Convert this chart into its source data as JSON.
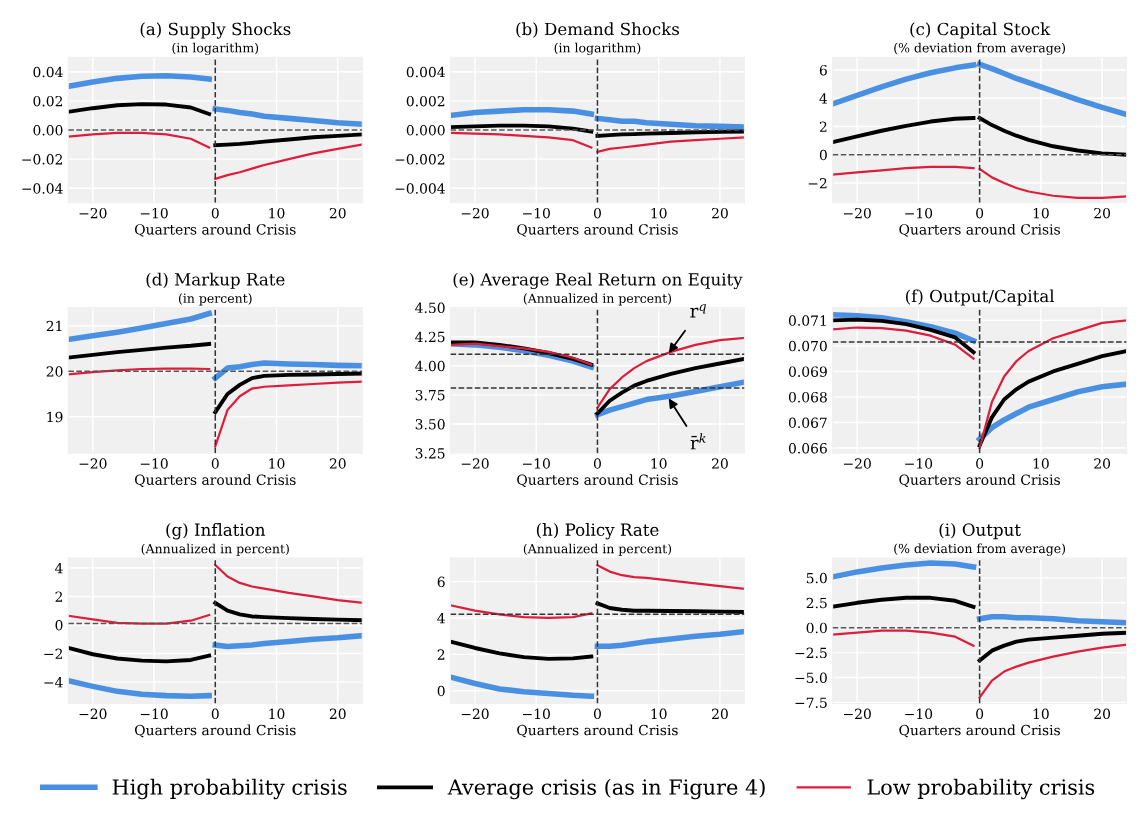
{
  "chart_data": [
    {
      "type": "line",
      "title": "(a) Supply Shocks",
      "subtitle": "(in logarithm)",
      "xlabel": "Quarters around Crisis",
      "x": [
        -24,
        -20,
        -16,
        -12,
        -8,
        -4,
        -1,
        -0.5,
        0,
        2,
        4,
        6,
        8,
        12,
        16,
        20,
        24
      ],
      "xlim": [
        -24,
        24
      ],
      "xticks": [
        -20,
        -10,
        0,
        10,
        20
      ],
      "ylim": [
        -0.05,
        0.05
      ],
      "yticks": [
        {
          "value": -0.04,
          "label": "−0.04"
        },
        {
          "value": -0.02,
          "label": "−0.02"
        },
        {
          "value": 0,
          "label": "0.00"
        },
        0.02,
        0.04
      ],
      "grid": true,
      "ref_lines": [
        {
          "axis": "x",
          "value": 0,
          "color": "#333333",
          "line_style": "dashed"
        },
        {
          "axis": "y",
          "value": 0,
          "color": "#555555",
          "line_style": "dashed"
        }
      ],
      "series": [
        {
          "color": "#4a90e2",
          "values": [
            0.03,
            0.033,
            0.0355,
            0.037,
            0.0373,
            0.0365,
            0.035,
            null,
            0.0145,
            0.0135,
            0.012,
            0.011,
            0.0095,
            0.008,
            0.0065,
            0.005,
            0.004
          ]
        },
        {
          "color": "#000000",
          "values": [
            0.0125,
            0.015,
            0.017,
            0.0178,
            0.0175,
            0.0155,
            0.011,
            null,
            -0.0105,
            -0.01,
            -0.0095,
            -0.0088,
            -0.008,
            -0.0065,
            -0.005,
            -0.004,
            -0.003
          ]
        },
        {
          "color": "#dc1e3c",
          "values": [
            -0.0045,
            -0.003,
            -0.002,
            -0.002,
            -0.003,
            -0.006,
            -0.012,
            null,
            -0.0335,
            -0.031,
            -0.029,
            -0.0265,
            -0.024,
            -0.02,
            -0.016,
            -0.013,
            -0.01
          ]
        }
      ]
    },
    {
      "type": "line",
      "title": "(b) Demand Shocks",
      "subtitle": "(in logarithm)",
      "xlabel": "Quarters around Crisis",
      "x": [
        -24,
        -20,
        -16,
        -12,
        -8,
        -4,
        -1,
        -0.5,
        0,
        2,
        4,
        6,
        8,
        12,
        16,
        20,
        24
      ],
      "xlim": [
        -24,
        24
      ],
      "xticks": [
        -20,
        -10,
        0,
        10,
        20
      ],
      "ylim": [
        -0.005,
        0.005
      ],
      "yticks": [
        {
          "value": -0.004,
          "label": "−0.004"
        },
        {
          "value": -0.002,
          "label": "−0.002"
        },
        {
          "value": 0,
          "label": "0.000"
        },
        0.002,
        0.004
      ],
      "grid": true,
      "ref_lines": [
        {
          "axis": "x",
          "value": 0,
          "color": "#333333",
          "line_style": "dashed"
        },
        {
          "axis": "y",
          "value": 0,
          "color": "#555555",
          "line_style": "dashed"
        }
      ],
      "series": [
        {
          "color": "#4a90e2",
          "values": [
            0.001,
            0.0012,
            0.0013,
            0.0014,
            0.0014,
            0.0013,
            0.0011,
            null,
            0.0008,
            0.0007,
            0.0006,
            0.0006,
            0.0005,
            0.0004,
            0.0003,
            0.00025,
            0.0002
          ]
        },
        {
          "color": "#000000",
          "values": [
            0.0002,
            0.00025,
            0.0003,
            0.0003,
            0.00025,
            0.0001,
            -0.0001,
            null,
            -0.0004,
            -0.00035,
            -0.0003,
            -0.00028,
            -0.00025,
            -0.0002,
            -0.00015,
            -0.00012,
            -0.0001
          ]
        },
        {
          "color": "#dc1e3c",
          "values": [
            -0.0002,
            -0.00025,
            -0.0003,
            -0.0004,
            -0.0005,
            -0.0007,
            -0.0012,
            null,
            -0.0015,
            -0.0013,
            -0.0012,
            -0.0011,
            -0.001,
            -0.0008,
            -0.0007,
            -0.0006,
            -0.0005
          ]
        }
      ]
    },
    {
      "type": "line",
      "title": "(c) Capital Stock",
      "subtitle": "(% deviation from average)",
      "xlabel": "Quarters around Crisis",
      "x": [
        -24,
        -20,
        -16,
        -12,
        -8,
        -4,
        -1,
        -0.5,
        0,
        2,
        4,
        6,
        8,
        12,
        16,
        20,
        24
      ],
      "xlim": [
        -24,
        24
      ],
      "xticks": [
        -20,
        -10,
        0,
        10,
        20
      ],
      "ylim": [
        -3.4,
        6.9
      ],
      "yticks": [
        {
          "value": -2,
          "label": "−2"
        },
        0,
        2,
        4,
        6
      ],
      "grid": true,
      "ref_lines": [
        {
          "axis": "x",
          "value": 0,
          "color": "#333333",
          "line_style": "dashed"
        },
        {
          "axis": "y",
          "value": 0,
          "color": "#555555",
          "line_style": "dashed"
        }
      ],
      "series": [
        {
          "color": "#4a90e2",
          "values": [
            3.6,
            4.2,
            4.8,
            5.35,
            5.8,
            6.15,
            6.35,
            null,
            6.4,
            6.1,
            5.75,
            5.4,
            5.1,
            4.5,
            3.9,
            3.35,
            2.85
          ]
        },
        {
          "color": "#000000",
          "values": [
            0.9,
            1.3,
            1.7,
            2.05,
            2.35,
            2.55,
            2.6,
            null,
            2.6,
            2.1,
            1.7,
            1.35,
            1.05,
            0.6,
            0.3,
            0.1,
            0.0
          ]
        },
        {
          "color": "#dc1e3c",
          "values": [
            -1.4,
            -1.25,
            -1.1,
            -0.95,
            -0.85,
            -0.85,
            -0.95,
            null,
            -1.0,
            -1.6,
            -2.0,
            -2.35,
            -2.6,
            -2.9,
            -3.05,
            -3.05,
            -2.95
          ]
        }
      ]
    },
    {
      "type": "line",
      "title": "(d) Markup Rate",
      "subtitle": "(in percent)",
      "xlabel": "Quarters around Crisis",
      "x": [
        -24,
        -20,
        -16,
        -12,
        -8,
        -4,
        -1,
        -0.5,
        0,
        2,
        4,
        6,
        8,
        12,
        16,
        20,
        24
      ],
      "xlim": [
        -24,
        24
      ],
      "xticks": [
        -20,
        -10,
        0,
        10,
        20
      ],
      "ylim": [
        18.2,
        21.4
      ],
      "yticks": [
        19,
        20,
        21
      ],
      "grid": true,
      "ref_lines": [
        {
          "axis": "x",
          "value": 0,
          "color": "#333333",
          "line_style": "dashed"
        },
        {
          "axis": "y",
          "value": 20,
          "color": "#555555",
          "line_style": "dashed"
        }
      ],
      "series": [
        {
          "color": "#4a90e2",
          "values": [
            20.7,
            20.78,
            20.86,
            20.95,
            21.05,
            21.15,
            21.27,
            null,
            19.85,
            20.07,
            20.1,
            20.15,
            20.18,
            20.16,
            20.15,
            20.13,
            20.12
          ]
        },
        {
          "color": "#000000",
          "values": [
            20.3,
            20.36,
            20.42,
            20.47,
            20.52,
            20.56,
            20.6,
            null,
            19.1,
            19.5,
            19.7,
            19.85,
            19.9,
            19.92,
            19.93,
            19.94,
            19.95
          ]
        },
        {
          "color": "#dc1e3c",
          "values": [
            19.93,
            19.98,
            20.02,
            20.05,
            20.06,
            20.06,
            20.05,
            null,
            18.35,
            19.15,
            19.45,
            19.62,
            19.66,
            19.69,
            19.72,
            19.75,
            19.77
          ]
        }
      ]
    },
    {
      "type": "line",
      "title": "(e) Average Real Return on Equity",
      "subtitle": "(Annualized in percent)",
      "xlabel": "Quarters around Crisis",
      "x": [
        -24,
        -20,
        -16,
        -12,
        -8,
        -4,
        -1,
        -0.5,
        0,
        2,
        4,
        6,
        8,
        12,
        16,
        20,
        24
      ],
      "xlim": [
        -24,
        24
      ],
      "xticks": [
        -20,
        -10,
        0,
        10,
        20
      ],
      "ylim": [
        3.25,
        4.5
      ],
      "yticks": [
        3.25,
        {
          "value": 3.5,
          "label": "3.50"
        },
        3.75,
        {
          "value": 4,
          "label": "4.00"
        },
        4.25,
        {
          "value": 4.5,
          "label": "4.50"
        }
      ],
      "grid": true,
      "ref_lines": [
        {
          "axis": "x",
          "value": 0,
          "color": "#333333",
          "line_style": "dashed"
        },
        {
          "axis": "y",
          "value": 4.1,
          "color": "#333333",
          "line_style": "dashed"
        },
        {
          "axis": "y",
          "value": 3.81,
          "color": "#333333",
          "line_style": "dashed"
        }
      ],
      "annotations": [
        {
          "text": "r$^{q}$",
          "x": 11.5,
          "y": 4.1
        },
        {
          "text": "r̄$^{k}$",
          "x": 11.5,
          "y": 3.73
        }
      ],
      "series": [
        {
          "color": "#4a90e2",
          "values": [
            4.19,
            4.18,
            4.16,
            4.13,
            4.09,
            4.04,
            3.99,
            null,
            3.58,
            3.62,
            3.65,
            3.68,
            3.71,
            3.74,
            3.78,
            3.82,
            3.86
          ]
        },
        {
          "color": "#000000",
          "values": [
            4.2,
            4.2,
            4.18,
            4.15,
            4.11,
            4.06,
            4.01,
            null,
            3.59,
            3.7,
            3.77,
            3.83,
            3.87,
            3.93,
            3.98,
            4.02,
            4.06
          ]
        },
        {
          "color": "#dc1e3c",
          "values": [
            4.18,
            4.19,
            4.17,
            4.15,
            4.12,
            4.07,
            4.01,
            null,
            3.64,
            3.8,
            3.9,
            3.98,
            4.04,
            4.12,
            4.18,
            4.22,
            4.24
          ]
        }
      ]
    },
    {
      "type": "line",
      "title": "(f) Output/Capital",
      "xlabel": "Quarters around Crisis",
      "x": [
        -24,
        -20,
        -16,
        -12,
        -8,
        -4,
        -1,
        -0.5,
        0,
        2,
        4,
        6,
        8,
        12,
        16,
        20,
        24
      ],
      "xlim": [
        -24,
        24
      ],
      "xticks": [
        -20,
        -10,
        0,
        10,
        20
      ],
      "ylim": [
        0.0658,
        0.0715
      ],
      "yticks": [
        0.066,
        0.067,
        0.068,
        0.069,
        {
          "value": 0.07,
          "label": "0.070"
        },
        0.071
      ],
      "grid": true,
      "ref_lines": [
        {
          "axis": "x",
          "value": 0,
          "color": "#333333",
          "line_style": "dashed"
        },
        {
          "axis": "y",
          "value": 0.07015,
          "color": "#333333",
          "line_style": "dashed"
        }
      ],
      "series": [
        {
          "color": "#4a90e2",
          "values": [
            0.07122,
            0.07118,
            0.0711,
            0.07095,
            0.07075,
            0.0705,
            0.0702,
            null,
            0.06635,
            0.0668,
            0.0671,
            0.06735,
            0.0676,
            0.0679,
            0.0682,
            0.0684,
            0.0685
          ]
        },
        {
          "color": "#000000",
          "values": [
            0.071,
            0.07103,
            0.07098,
            0.07085,
            0.07063,
            0.07033,
            0.06975,
            null,
            0.0661,
            0.0672,
            0.0679,
            0.0683,
            0.0686,
            0.069,
            0.0693,
            0.0696,
            0.0698
          ]
        },
        {
          "color": "#dc1e3c",
          "values": [
            0.07065,
            0.07072,
            0.0707,
            0.0706,
            0.0704,
            0.07005,
            0.0695,
            null,
            0.066,
            0.0678,
            0.0688,
            0.0694,
            0.0698,
            0.0703,
            0.0706,
            0.0709,
            0.071
          ]
        }
      ]
    },
    {
      "type": "line",
      "title": "(g) Inflation",
      "subtitle": "(Annualized in percent)",
      "xlabel": "Quarters around Crisis",
      "x": [
        -24,
        -20,
        -16,
        -12,
        -8,
        -4,
        -1,
        -0.5,
        0,
        2,
        4,
        6,
        8,
        12,
        16,
        20,
        24
      ],
      "xlim": [
        -24,
        24
      ],
      "xticks": [
        -20,
        -10,
        0,
        10,
        20
      ],
      "ylim": [
        -5.5,
        4.7
      ],
      "yticks": [
        {
          "value": -4,
          "label": "−4"
        },
        {
          "value": -2,
          "label": "−2"
        },
        0,
        2,
        4
      ],
      "grid": true,
      "ref_lines": [
        {
          "axis": "x",
          "value": 0,
          "color": "#333333",
          "line_style": "dashed"
        },
        {
          "axis": "y",
          "value": 0.1,
          "color": "#555555",
          "line_style": "dashed"
        }
      ],
      "series": [
        {
          "color": "#4a90e2",
          "values": [
            -3.9,
            -4.3,
            -4.65,
            -4.85,
            -4.95,
            -5.0,
            -4.95,
            null,
            -1.4,
            -1.5,
            -1.45,
            -1.4,
            -1.3,
            -1.15,
            -1.0,
            -0.9,
            -0.75
          ]
        },
        {
          "color": "#000000",
          "values": [
            -1.6,
            -2.05,
            -2.35,
            -2.5,
            -2.55,
            -2.45,
            -2.15,
            null,
            1.55,
            1.0,
            0.75,
            0.6,
            0.55,
            0.48,
            0.42,
            0.38,
            0.33
          ]
        },
        {
          "color": "#dc1e3c",
          "values": [
            0.65,
            0.4,
            0.15,
            0.1,
            0.1,
            0.3,
            0.7,
            null,
            4.2,
            3.4,
            2.95,
            2.7,
            2.55,
            2.25,
            2.0,
            1.75,
            1.55
          ]
        }
      ]
    },
    {
      "type": "line",
      "title": "(h) Policy Rate",
      "subtitle": "(Annualized in percent)",
      "xlabel": "Quarters around Crisis",
      "x": [
        -24,
        -20,
        -16,
        -12,
        -8,
        -4,
        -1,
        -0.5,
        0,
        2,
        4,
        6,
        8,
        12,
        16,
        20,
        24
      ],
      "xlim": [
        -24,
        24
      ],
      "xticks": [
        -20,
        -10,
        0,
        10,
        20
      ],
      "ylim": [
        -0.7,
        7.3
      ],
      "yticks": [
        0,
        2,
        4,
        6
      ],
      "grid": true,
      "ref_lines": [
        {
          "axis": "x",
          "value": 0,
          "color": "#333333",
          "line_style": "dashed"
        },
        {
          "axis": "y",
          "value": 4.2,
          "color": "#333333",
          "line_style": "dashed"
        }
      ],
      "series": [
        {
          "color": "#4a90e2",
          "values": [
            0.75,
            0.4,
            0.1,
            -0.05,
            -0.15,
            -0.25,
            -0.3,
            null,
            2.45,
            2.45,
            2.5,
            2.6,
            2.7,
            2.85,
            3.0,
            3.1,
            3.25
          ]
        },
        {
          "color": "#000000",
          "values": [
            2.7,
            2.35,
            2.05,
            1.85,
            1.75,
            1.78,
            1.88,
            null,
            4.8,
            4.55,
            4.45,
            4.4,
            4.4,
            4.38,
            4.37,
            4.35,
            4.33
          ]
        },
        {
          "color": "#dc1e3c",
          "values": [
            4.7,
            4.4,
            4.2,
            4.05,
            4.0,
            4.05,
            4.25,
            null,
            6.9,
            6.55,
            6.35,
            6.25,
            6.2,
            6.05,
            5.9,
            5.75,
            5.6
          ]
        }
      ]
    },
    {
      "type": "line",
      "title": "(i) Output",
      "subtitle": "(% deviation from average)",
      "xlabel": "Quarters around Crisis",
      "x": [
        -24,
        -20,
        -16,
        -12,
        -8,
        -4,
        -1,
        -0.5,
        0,
        2,
        4,
        6,
        8,
        12,
        16,
        20,
        24
      ],
      "xlim": [
        -24,
        24
      ],
      "xticks": [
        -20,
        -10,
        0,
        10,
        20
      ],
      "ylim": [
        -7.6,
        7.0
      ],
      "yticks": [
        {
          "value": -7.5,
          "label": "−7.5"
        },
        {
          "value": -5,
          "label": "−5.0"
        },
        {
          "value": -2.5,
          "label": "−2.5"
        },
        {
          "value": 0,
          "label": "0.0"
        },
        2.5,
        {
          "value": 5,
          "label": "5.0"
        }
      ],
      "grid": true,
      "legend": "bottom",
      "ref_lines": [
        {
          "axis": "x",
          "value": 0,
          "color": "#333333",
          "line_style": "dashed"
        },
        {
          "axis": "y",
          "value": 0,
          "color": "#555555",
          "line_style": "dashed"
        }
      ],
      "series": [
        {
          "name": "High probability crisis",
          "color": "#4a90e2",
          "values": [
            5.1,
            5.6,
            6.0,
            6.3,
            6.5,
            6.4,
            6.1,
            null,
            0.9,
            1.1,
            1.1,
            1.0,
            1.0,
            0.9,
            0.7,
            0.6,
            0.5
          ]
        },
        {
          "name": "Average crisis (as in Figure 4)",
          "color": "#000000",
          "values": [
            2.1,
            2.5,
            2.8,
            3.0,
            3.0,
            2.7,
            2.1,
            null,
            -3.3,
            -2.3,
            -1.8,
            -1.4,
            -1.2,
            -1.0,
            -0.8,
            -0.6,
            -0.5
          ]
        },
        {
          "name": "Low probability crisis",
          "color": "#dc1e3c",
          "values": [
            -0.7,
            -0.5,
            -0.3,
            -0.3,
            -0.5,
            -0.9,
            -1.8,
            null,
            -7.0,
            -5.3,
            -4.4,
            -3.9,
            -3.5,
            -2.9,
            -2.4,
            -2.0,
            -1.7
          ]
        }
      ]
    }
  ]
}
